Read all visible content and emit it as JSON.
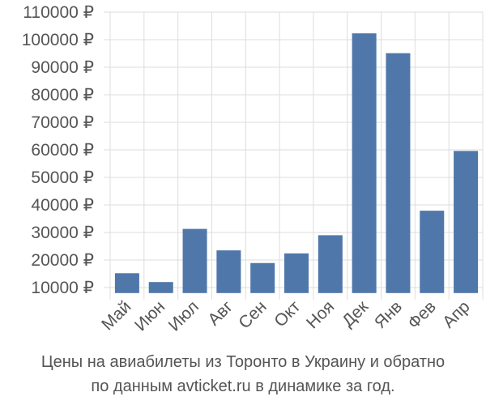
{
  "chart_data": {
    "type": "bar",
    "categories": [
      "Май",
      "Июн",
      "Июл",
      "Авг",
      "Сен",
      "Окт",
      "Ноя",
      "Дек",
      "Янв",
      "Фев",
      "Апр"
    ],
    "values": [
      15200,
      12000,
      31300,
      23500,
      18900,
      22400,
      29000,
      102300,
      95100,
      37900,
      59600
    ],
    "ylim": [
      8000,
      110000
    ],
    "yticks": [
      10000,
      20000,
      30000,
      40000,
      50000,
      60000,
      70000,
      80000,
      90000,
      100000,
      110000
    ],
    "ytick_labels": [
      "10000 ₽",
      "20000 ₽",
      "30000 ₽",
      "40000 ₽",
      "50000 ₽",
      "60000 ₽",
      "70000 ₽",
      "80000 ₽",
      "90000 ₽",
      "100000 ₽",
      "110000 ₽"
    ],
    "grid": true,
    "bar_color": "#4f77aa",
    "grid_color": "#dddddd",
    "caption_lines": [
      "Цены на авиабилеты из Торонто в Украину и обратно",
      "по данным avticket.ru в динамике за год."
    ]
  }
}
